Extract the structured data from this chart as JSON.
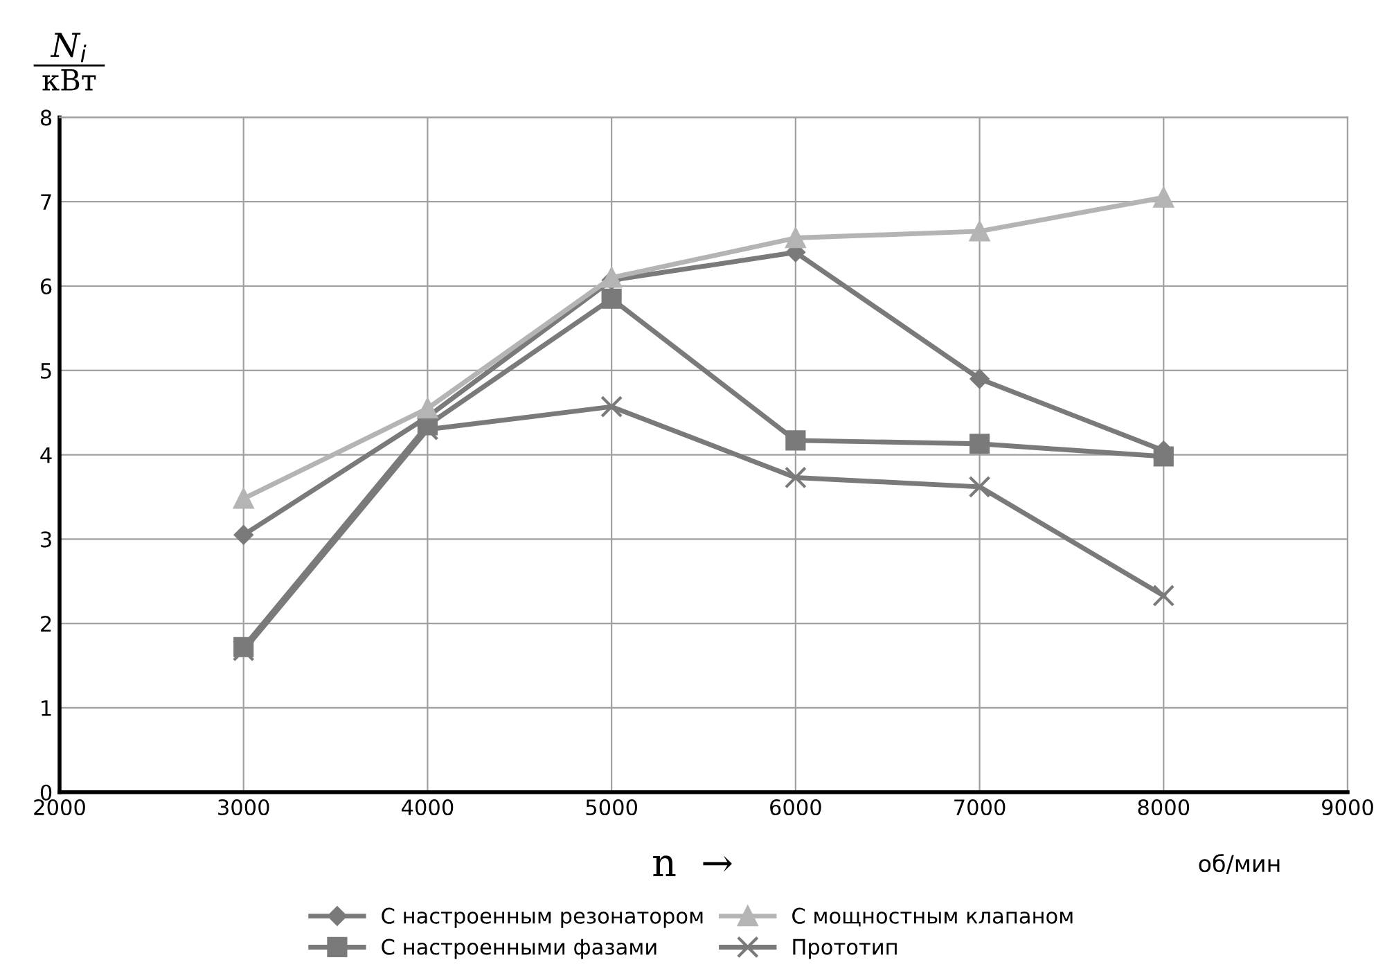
{
  "chart_data": {
    "type": "line",
    "ylabel": "N$_{i}$",
    "xlabel": "n  →",
    "annotations": [
      "кВт",
      "об/мин"
    ],
    "x": [
      3000,
      4000,
      5000,
      6000,
      7000,
      8000
    ],
    "series": [
      {
        "name": "С настроенным резонатором",
        "color": "#7a7a7a",
        "marker": "diamond",
        "values": [
          3.05,
          4.45,
          6.07,
          6.4,
          4.9,
          4.05
        ]
      },
      {
        "name": "С настроенными фазами",
        "color": "#7a7a7a",
        "marker": "square",
        "values": [
          1.72,
          4.35,
          5.85,
          4.17,
          4.13,
          3.98
        ]
      },
      {
        "name": "С мощностным клапаном",
        "color": "#b4b4b4",
        "marker": "triangle",
        "values": [
          3.48,
          4.55,
          6.1,
          6.57,
          6.65,
          7.05
        ]
      },
      {
        "name": "Прототип",
        "color": "#7a7a7a",
        "marker": "cross",
        "values": [
          1.68,
          4.3,
          4.57,
          3.73,
          3.62,
          2.33
        ]
      }
    ],
    "xlim": [
      2000,
      9000
    ],
    "xticks": [
      2000,
      3000,
      4000,
      5000,
      6000,
      7000,
      8000,
      9000
    ],
    "ylim": [
      0,
      8
    ],
    "yticks": [
      0,
      1,
      2,
      3,
      4,
      5,
      6,
      7,
      8
    ],
    "grid": true,
    "legend": "bottom",
    "line_style": "solid"
  }
}
